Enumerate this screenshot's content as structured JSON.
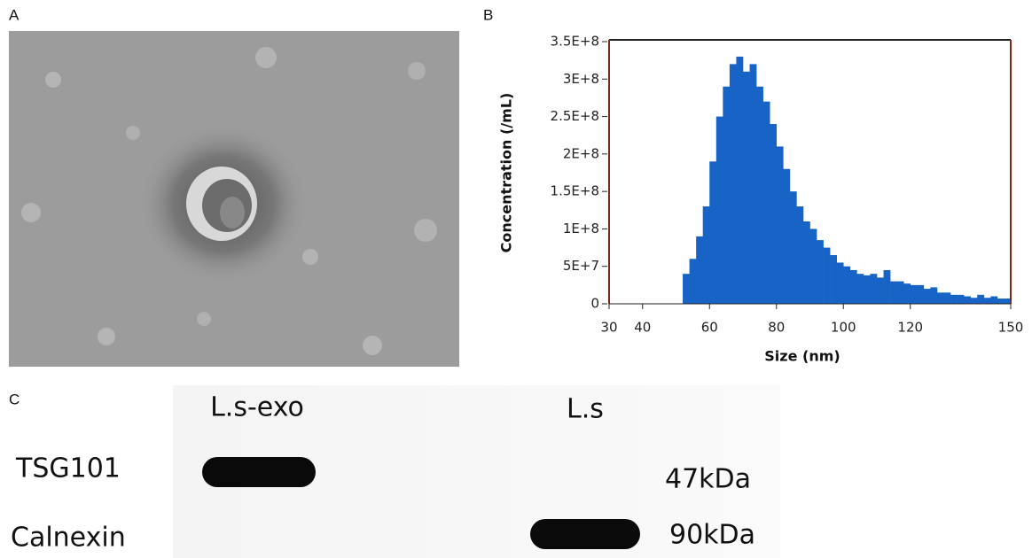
{
  "panel_labels": [
    "A",
    "B",
    "C"
  ],
  "chart_data": {
    "type": "histogram",
    "x_label": "Size (nm)",
    "y_label": "Concentration (/mL)",
    "color": "#1763c6",
    "bins": [
      30,
      32,
      34,
      36,
      38,
      40,
      42,
      44,
      46,
      48,
      50,
      52,
      54,
      56,
      58,
      60,
      62,
      64,
      66,
      68,
      70,
      72,
      74,
      76,
      78,
      80,
      82,
      84,
      86,
      88,
      90,
      92,
      94,
      96,
      98,
      100,
      102,
      104,
      106,
      108,
      110,
      112,
      114,
      116,
      118,
      120,
      122,
      124,
      126,
      128,
      130,
      132,
      134,
      136,
      138,
      140,
      142,
      144,
      146,
      148,
      150
    ],
    "counts": [
      0,
      0,
      0,
      0,
      0,
      0,
      0,
      0,
      0,
      0,
      0,
      40000000,
      60000000,
      90000000,
      130000000,
      190000000,
      250000000,
      290000000,
      320000000,
      330000000,
      310000000,
      320000000,
      290000000,
      270000000,
      240000000,
      210000000,
      180000000,
      150000000,
      130000000,
      110000000,
      100000000,
      85000000,
      75000000,
      65000000,
      55000000,
      50000000,
      45000000,
      40000000,
      38000000,
      40000000,
      35000000,
      45000000,
      30000000,
      30000000,
      27000000,
      25000000,
      25000000,
      20000000,
      22000000,
      15000000,
      15000000,
      12000000,
      12000000,
      10000000,
      8000000,
      12000000,
      8000000,
      10000000,
      7000000,
      7000000
    ],
    "xlim": [
      30,
      150
    ],
    "xticks": [
      30,
      40,
      60,
      80,
      100,
      120,
      150
    ],
    "ylim": [
      0,
      350000000
    ],
    "yticks": [
      0,
      {
        "value": 50000000,
        "label": "5E+7"
      },
      {
        "value": 100000000,
        "label": "1E+8"
      },
      {
        "value": 150000000,
        "label": "1.5E+8"
      },
      {
        "value": 200000000,
        "label": "2E+8"
      },
      {
        "value": 250000000,
        "label": "2.5E+8"
      },
      {
        "value": 300000000,
        "label": "3E+8"
      },
      {
        "value": 350000000,
        "label": "3.5E+8"
      }
    ]
  },
  "blot": {
    "lanes": [
      "L.s-exo",
      "L.s"
    ],
    "rows": [
      {
        "name": "TSG101",
        "size": "47kDa"
      },
      {
        "name": "Calnexin",
        "size": "90kDa"
      }
    ]
  }
}
